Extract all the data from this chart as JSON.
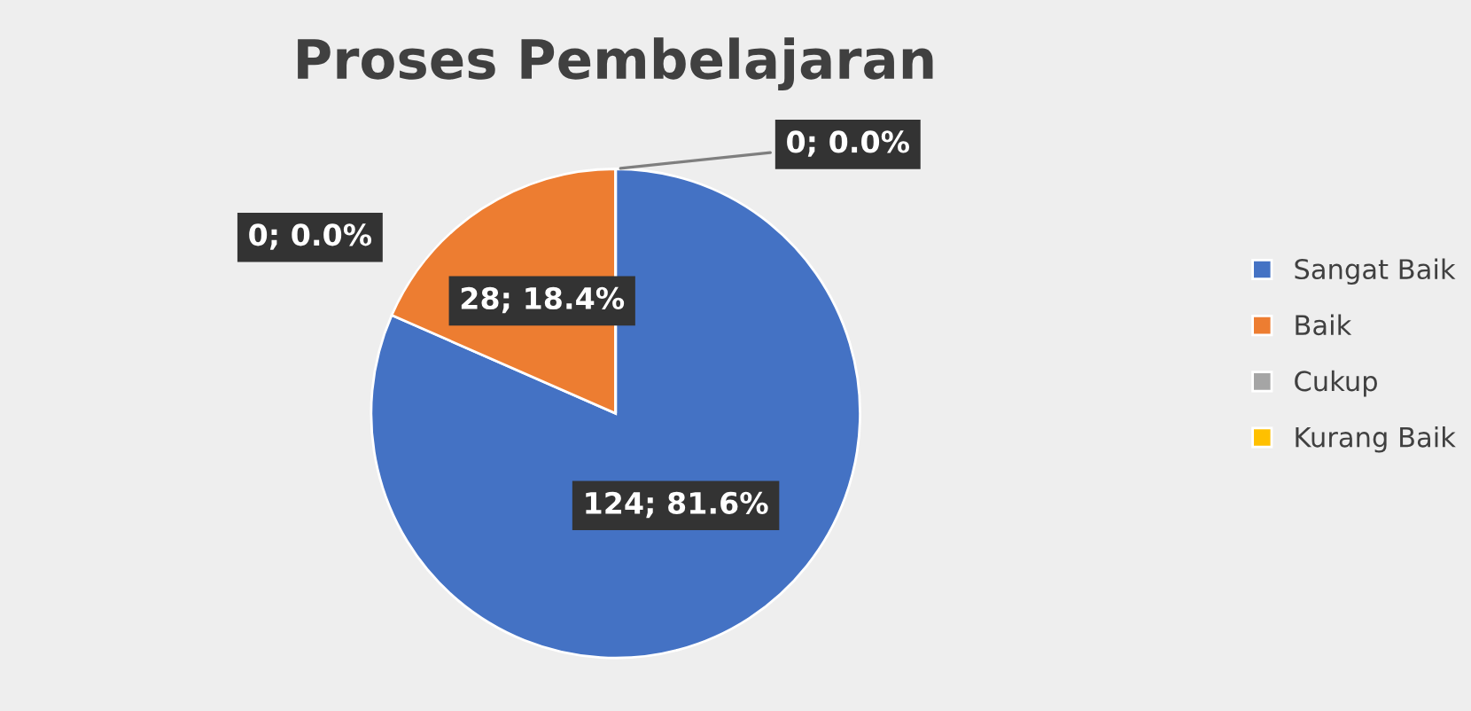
{
  "chart_data": {
    "type": "pie",
    "title": "Proses Pembelajaran",
    "categories": [
      "Sangat Baik",
      "Baik",
      "Cukup",
      "Kurang Baik"
    ],
    "values": [
      124,
      28,
      0,
      0
    ],
    "colors": [
      "#4472c4",
      "#ed7d31",
      "#a5a5a5",
      "#ffc000"
    ],
    "value_labels": [
      "124; 81.6%",
      "28; 18.4%",
      "0; 0.0%",
      "0; 0.0%"
    ],
    "legend": "right"
  }
}
